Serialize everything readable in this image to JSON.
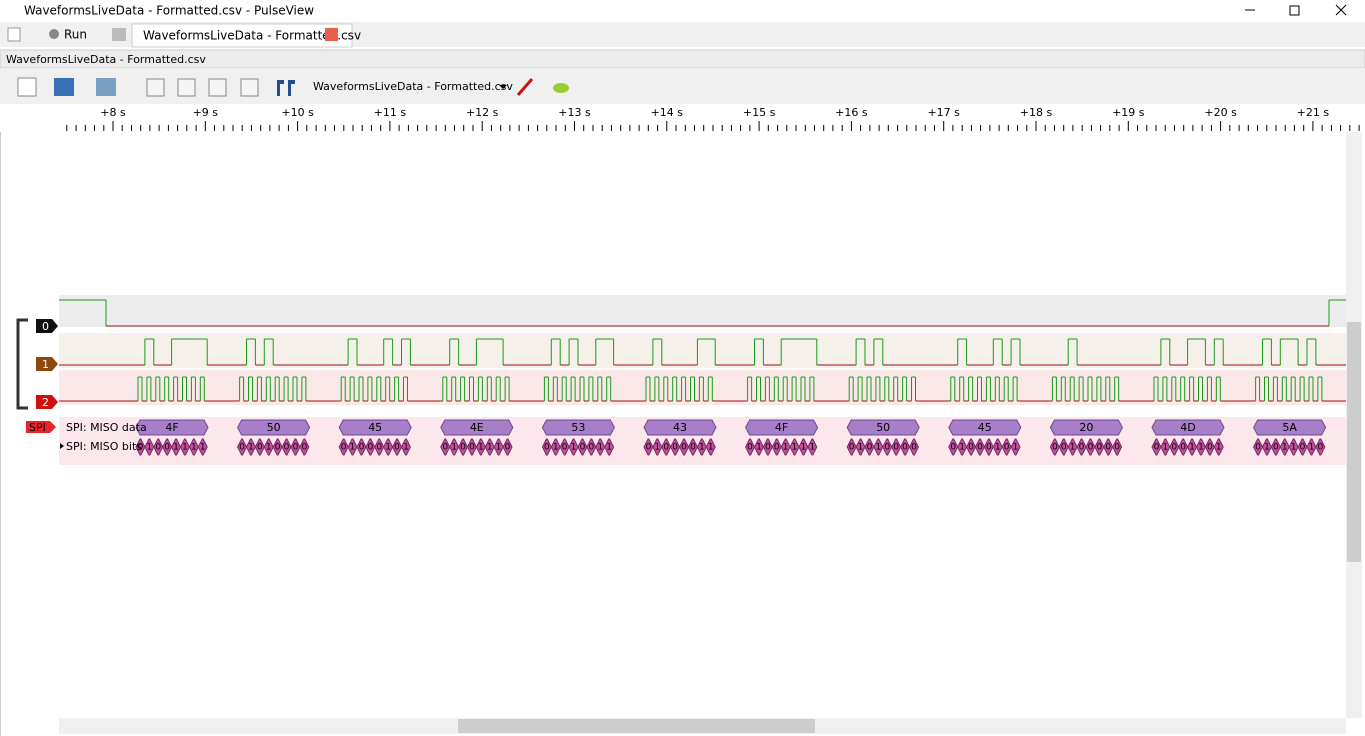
{
  "window": {
    "title": "WaveformsLiveData - Formatted.csv - PulseView",
    "run": "Run",
    "tab": "WaveformsLiveData - Formatted.csv"
  },
  "view": {
    "title": "WaveformsLiveData - Formatted.csv",
    "device": "WaveformsLiveData - Formatted.csv"
  },
  "ruler": {
    "labels": [
      "+8 s",
      "+9 s",
      "+10 s",
      "+11 s",
      "+12 s",
      "+13 s",
      "+14 s",
      "+15 s",
      "+16 s",
      "+17 s",
      "+18 s",
      "+19 s",
      "+20 s",
      "+21 s"
    ]
  },
  "channels": [
    {
      "label": "0"
    },
    {
      "label": "1"
    },
    {
      "label": "2"
    }
  ],
  "decoder": {
    "tag": "SPI",
    "rows": [
      "SPI: MISO data",
      "SPI: MISO bits"
    ],
    "bytes": [
      {
        "value": "4F",
        "bits": [
          "0",
          "1",
          "0",
          "0",
          "1",
          "1",
          "1",
          "1"
        ]
      },
      {
        "value": "50",
        "bits": [
          "0",
          "1",
          "0",
          "1",
          "0",
          "0",
          "0",
          "0"
        ]
      },
      {
        "value": "45",
        "bits": [
          "0",
          "1",
          "0",
          "0",
          "0",
          "1",
          "0",
          "1"
        ]
      },
      {
        "value": "4E",
        "bits": [
          "0",
          "1",
          "0",
          "0",
          "1",
          "1",
          "1",
          "0"
        ]
      },
      {
        "value": "53",
        "bits": [
          "0",
          "1",
          "0",
          "1",
          "0",
          "0",
          "1",
          "1"
        ]
      },
      {
        "value": "43",
        "bits": [
          "0",
          "1",
          "0",
          "0",
          "0",
          "0",
          "1",
          "1"
        ]
      },
      {
        "value": "4F",
        "bits": [
          "0",
          "1",
          "0",
          "0",
          "1",
          "1",
          "1",
          "1"
        ]
      },
      {
        "value": "50",
        "bits": [
          "0",
          "1",
          "0",
          "1",
          "0",
          "0",
          "0",
          "0"
        ]
      },
      {
        "value": "45",
        "bits": [
          "0",
          "1",
          "0",
          "0",
          "0",
          "1",
          "0",
          "1"
        ]
      },
      {
        "value": "20",
        "bits": [
          "0",
          "0",
          "1",
          "0",
          "0",
          "0",
          "0",
          "0"
        ]
      },
      {
        "value": "4D",
        "bits": [
          "0",
          "1",
          "0",
          "0",
          "1",
          "1",
          "0",
          "1"
        ]
      },
      {
        "value": "5A",
        "bits": [
          "0",
          "1",
          "0",
          "1",
          "1",
          "0",
          "1",
          "0"
        ]
      }
    ]
  }
}
